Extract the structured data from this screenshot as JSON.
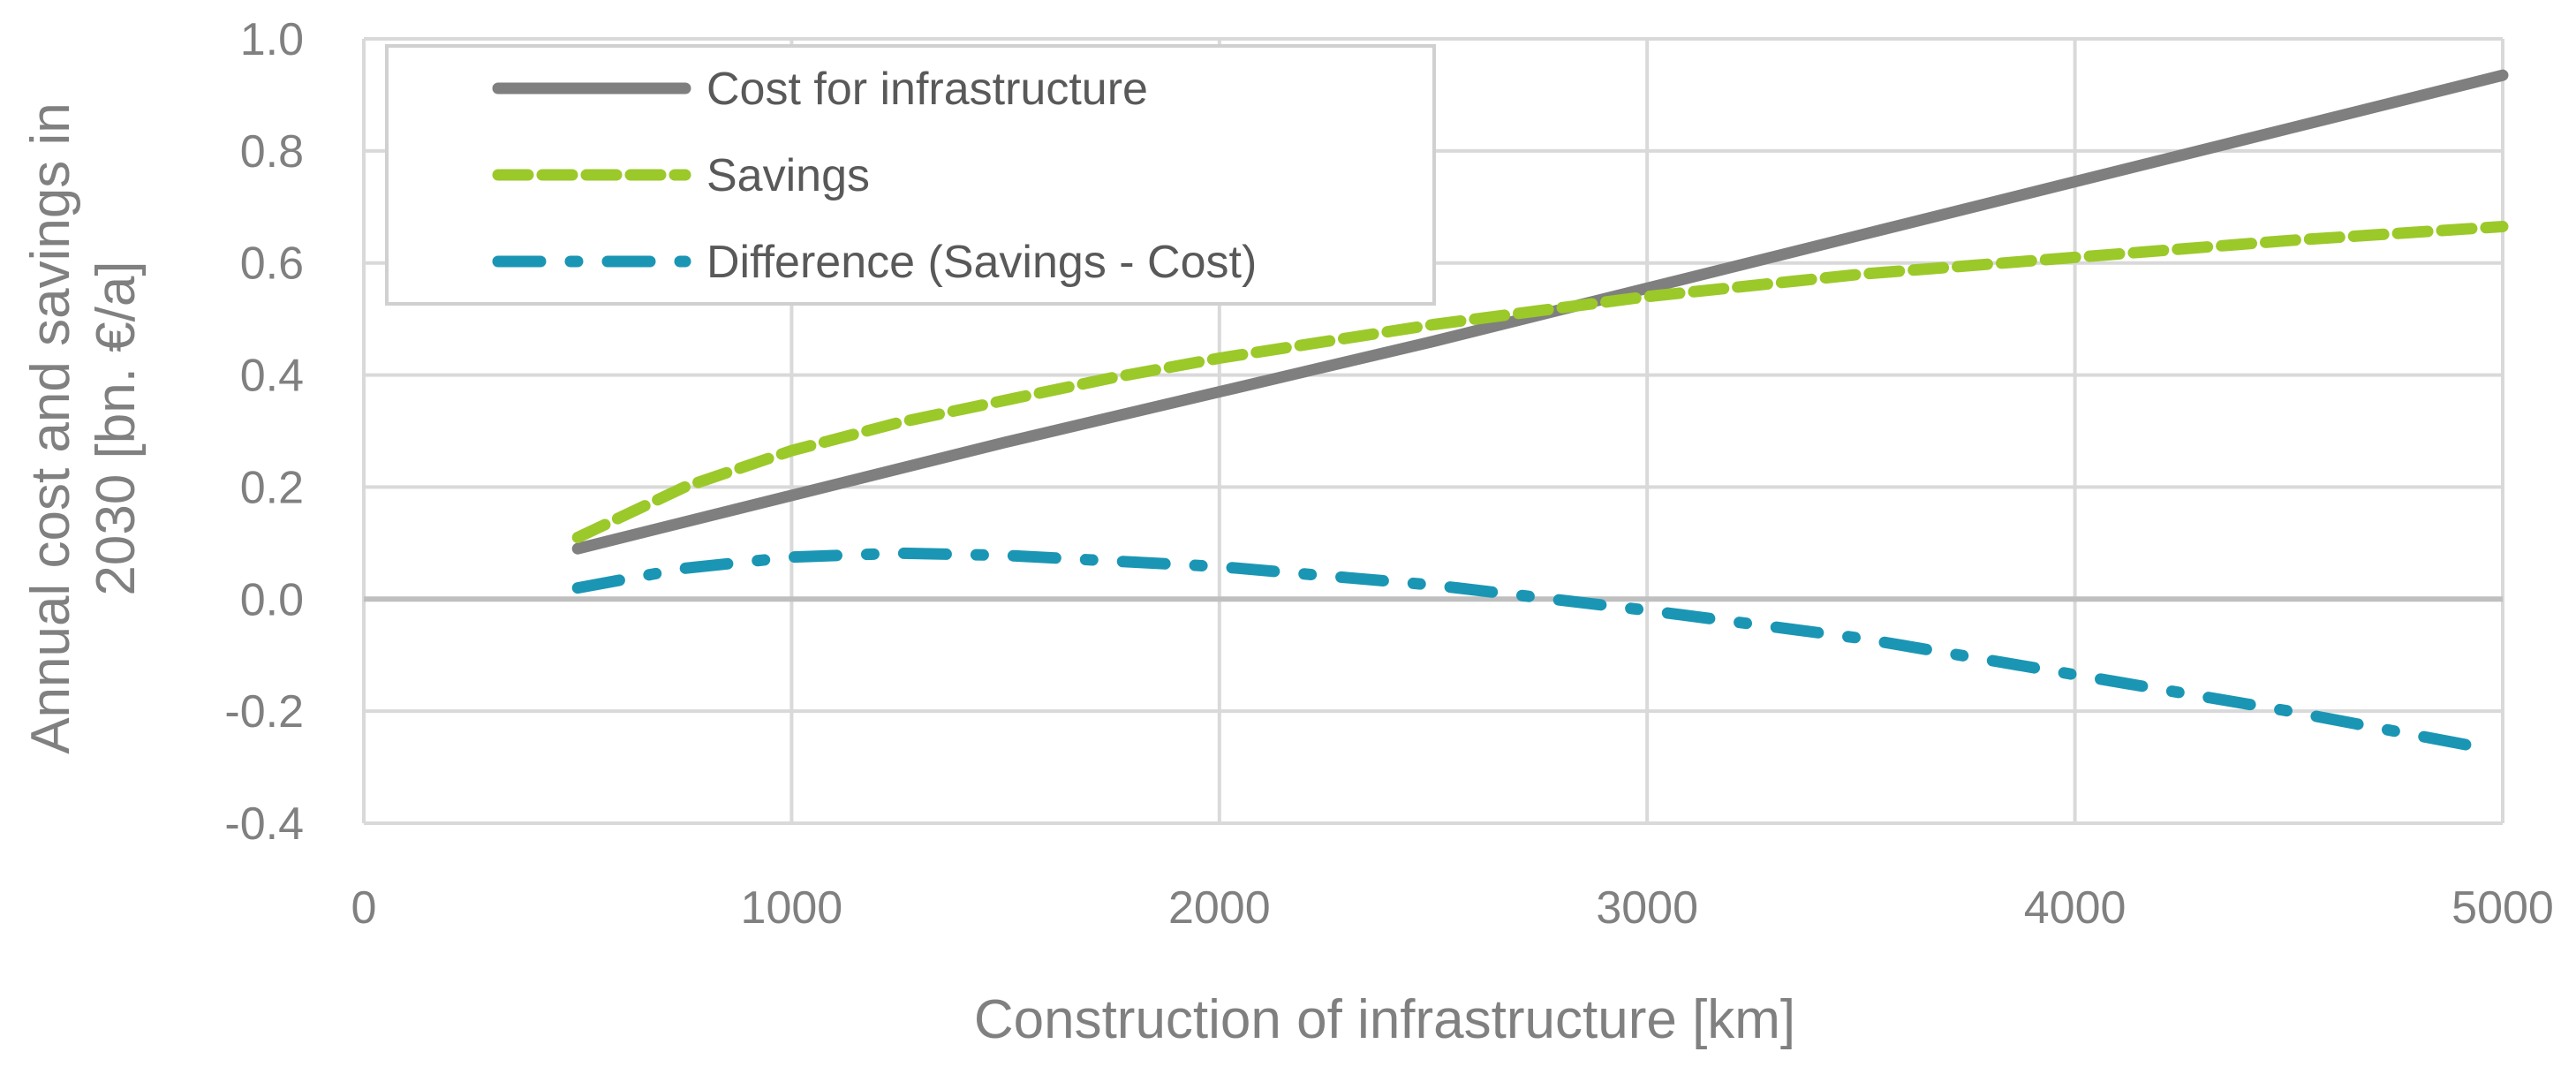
{
  "chart_data": {
    "type": "line",
    "title": "",
    "xlabel": "Construction of infrastructure [km]",
    "ylabel_lines": [
      "Annual cost and savings in",
      "2030 [bn. €/a]"
    ],
    "xlim": [
      0,
      5000
    ],
    "ylim": [
      -0.4,
      1.0
    ],
    "xticks": [
      0,
      1000,
      2000,
      3000,
      4000,
      5000
    ],
    "xtick_labels": [
      "0",
      "1000",
      "2000",
      "3000",
      "4000",
      "5000"
    ],
    "yticks": [
      1.0,
      0.8,
      0.6,
      0.4,
      0.2,
      0.0,
      -0.2,
      -0.4
    ],
    "ytick_labels": [
      "1.0",
      "0.8",
      "0.6",
      "0.4",
      "0.2",
      "0.0",
      "-0.2",
      "-0.4"
    ],
    "grid": true,
    "legend_position": "top-left",
    "series": [
      {
        "name": "Cost for infrastructure",
        "color": "#7f7f7f",
        "style": "solid",
        "x": [
          500,
          1000,
          1500,
          2000,
          2500,
          3000,
          3500,
          4000,
          4500,
          5000
        ],
        "y": [
          0.09,
          0.185,
          0.28,
          0.37,
          0.46,
          0.555,
          0.65,
          0.745,
          0.84,
          0.935
        ]
      },
      {
        "name": "Savings",
        "color": "#9bc92a",
        "style": "dashed",
        "x": [
          500,
          750,
          1000,
          1250,
          1500,
          1750,
          2000,
          2250,
          2500,
          2750,
          3000,
          3500,
          4000,
          4500,
          5000
        ],
        "y": [
          0.11,
          0.2,
          0.265,
          0.315,
          0.355,
          0.395,
          0.43,
          0.46,
          0.49,
          0.515,
          0.54,
          0.58,
          0.61,
          0.64,
          0.665
        ]
      },
      {
        "name": "Difference (Savings - Cost)",
        "color": "#1a96b4",
        "style": "dashdot",
        "x": [
          500,
          750,
          1000,
          1250,
          1500,
          2000,
          2500,
          3000,
          3500,
          4000,
          4500,
          4950
        ],
        "y": [
          0.02,
          0.055,
          0.075,
          0.082,
          0.078,
          0.058,
          0.025,
          -0.02,
          -0.07,
          -0.135,
          -0.2,
          -0.265
        ]
      }
    ]
  }
}
